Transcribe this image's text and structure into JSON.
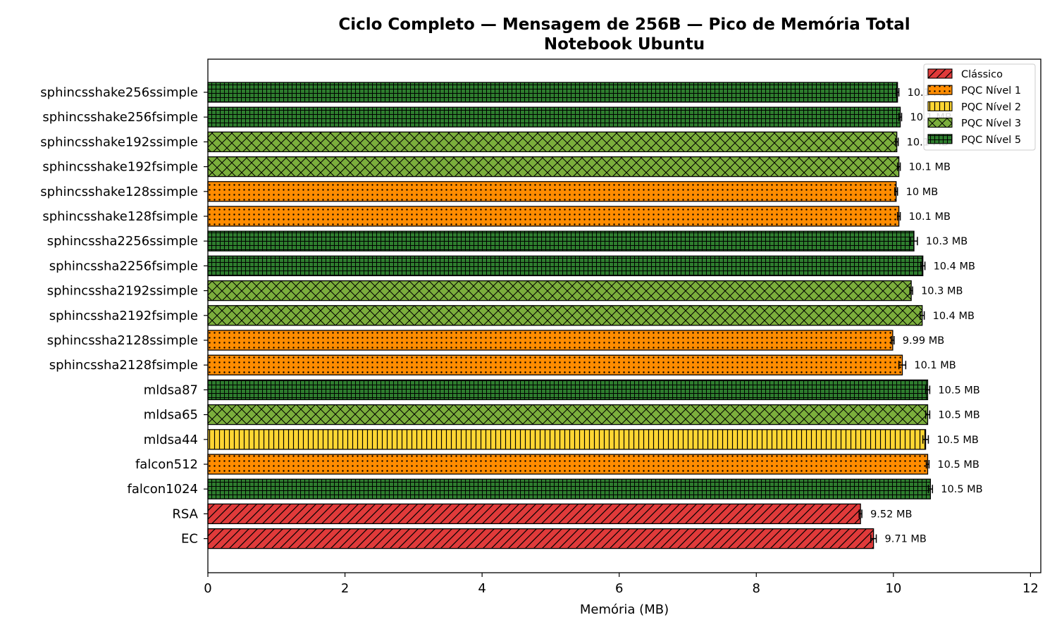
{
  "chart_data": {
    "type": "bar",
    "orientation": "horizontal",
    "title": "Ciclo Completo — Mensagem de 256B — Pico de Memória Total",
    "subtitle": "Notebook Ubuntu",
    "xlabel": "Memória (MB)",
    "ylabel": "",
    "xlim": [
      0,
      12.15
    ],
    "xticks": [
      0,
      2,
      4,
      6,
      8,
      10,
      12
    ],
    "grid": false,
    "legend_position": "top-right",
    "categories": [
      "sphincsshake256ssimple",
      "sphincsshake256fsimple",
      "sphincsshake192ssimple",
      "sphincsshake192fsimple",
      "sphincsshake128ssimple",
      "sphincsshake128fsimple",
      "sphincssha2256ssimple",
      "sphincssha2256fsimple",
      "sphincssha2192ssimple",
      "sphincssha2192fsimple",
      "sphincssha2128ssimple",
      "sphincssha2128fsimple",
      "mldsa87",
      "mldsa65",
      "mldsa44",
      "falcon512",
      "falcon1024",
      "RSA",
      "EC"
    ],
    "values": [
      10.06,
      10.1,
      10.05,
      10.08,
      10.04,
      10.08,
      10.3,
      10.43,
      10.26,
      10.42,
      9.99,
      10.13,
      10.5,
      10.5,
      10.47,
      10.5,
      10.54,
      9.52,
      9.71
    ],
    "errors": [
      0.02,
      0.02,
      0.02,
      0.02,
      0.02,
      0.02,
      0.05,
      0.03,
      0.02,
      0.03,
      0.02,
      0.05,
      0.03,
      0.03,
      0.04,
      0.02,
      0.03,
      0.02,
      0.04
    ],
    "data_labels": [
      "10.1 MB",
      "10.1 MB",
      "10.1 MB",
      "10.1 MB",
      "10 MB",
      "10.1 MB",
      "10.3 MB",
      "10.4 MB",
      "10.3 MB",
      "10.4 MB",
      "9.99 MB",
      "10.1 MB",
      "10.5 MB",
      "10.5 MB",
      "10.5 MB",
      "10.5 MB",
      "10.5 MB",
      "9.52 MB",
      "9.71 MB"
    ],
    "groups": [
      "pqc5",
      "pqc5",
      "pqc3",
      "pqc3",
      "pqc1",
      "pqc1",
      "pqc5",
      "pqc5",
      "pqc3",
      "pqc3",
      "pqc1",
      "pqc1",
      "pqc5",
      "pqc3",
      "pqc2",
      "pqc1",
      "pqc5",
      "classic",
      "classic"
    ],
    "legend": [
      {
        "key": "classic",
        "name": "Clássico",
        "color": "#e03a3a",
        "hatch": "diagonal"
      },
      {
        "key": "pqc1",
        "name": "PQC Nível 1",
        "color": "#ff8c00",
        "hatch": "dots"
      },
      {
        "key": "pqc2",
        "name": "PQC Nível 2",
        "color": "#ffd633",
        "hatch": "vertical"
      },
      {
        "key": "pqc3",
        "name": "PQC Nível 3",
        "color": "#7bae3c",
        "hatch": "crosshatch"
      },
      {
        "key": "pqc5",
        "name": "PQC Nível 5",
        "color": "#2e7d2e",
        "hatch": "grid"
      }
    ]
  }
}
